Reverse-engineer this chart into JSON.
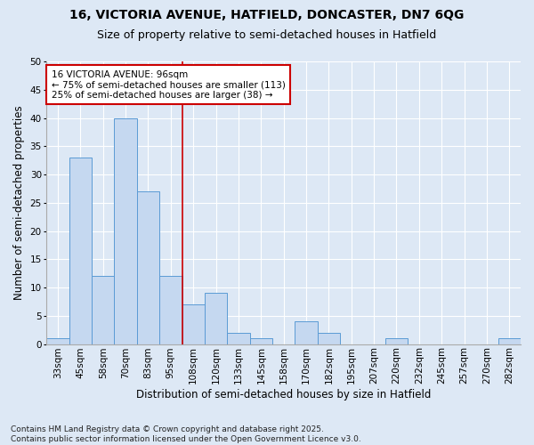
{
  "title_line1": "16, VICTORIA AVENUE, HATFIELD, DONCASTER, DN7 6QG",
  "title_line2": "Size of property relative to semi-detached houses in Hatfield",
  "xlabel": "Distribution of semi-detached houses by size in Hatfield",
  "ylabel": "Number of semi-detached properties",
  "categories": [
    "33sqm",
    "45sqm",
    "58sqm",
    "70sqm",
    "83sqm",
    "95sqm",
    "108sqm",
    "120sqm",
    "133sqm",
    "145sqm",
    "158sqm",
    "170sqm",
    "182sqm",
    "195sqm",
    "207sqm",
    "220sqm",
    "232sqm",
    "245sqm",
    "257sqm",
    "270sqm",
    "282sqm"
  ],
  "values": [
    1,
    33,
    12,
    40,
    27,
    12,
    7,
    9,
    2,
    1,
    0,
    4,
    2,
    0,
    0,
    1,
    0,
    0,
    0,
    0,
    1
  ],
  "bar_color": "#c5d8f0",
  "bar_edge_color": "#5b9bd5",
  "vline_x_index": 5,
  "vline_color": "#cc0000",
  "annotation_title": "16 VICTORIA AVENUE: 96sqm",
  "annotation_line2": "← 75% of semi-detached houses are smaller (113)",
  "annotation_line3": "25% of semi-detached houses are larger (38) →",
  "annotation_box_edgecolor": "#cc0000",
  "annotation_bg": "#ffffff",
  "ylim": [
    0,
    50
  ],
  "yticks": [
    0,
    5,
    10,
    15,
    20,
    25,
    30,
    35,
    40,
    45,
    50
  ],
  "footnote": "Contains HM Land Registry data © Crown copyright and database right 2025.\nContains public sector information licensed under the Open Government Licence v3.0.",
  "bg_color": "#dde8f5",
  "plot_bg_color": "#dde8f5",
  "grid_color": "#ffffff",
  "title_fontsize": 10,
  "subtitle_fontsize": 9,
  "axis_label_fontsize": 8.5,
  "tick_fontsize": 7.5,
  "annotation_fontsize": 7.5,
  "footnote_fontsize": 6.5
}
